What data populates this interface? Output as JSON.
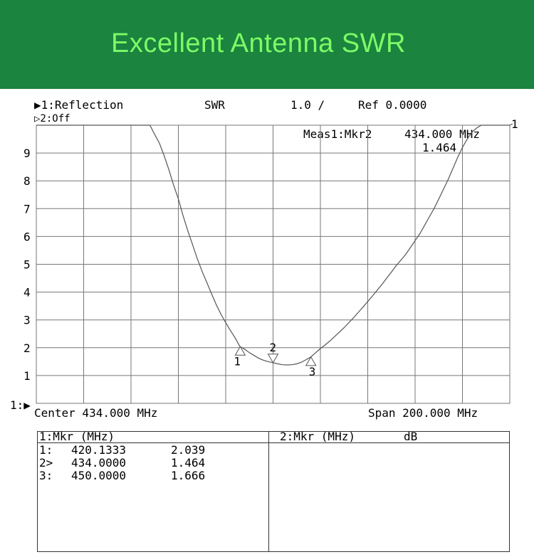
{
  "banner": {
    "title": "Excellent Antenna SWR"
  },
  "header": {
    "trace1": "▶1:Reflection",
    "format": "SWR",
    "scale": "1.0 /",
    "ref": "Ref 0.0000",
    "trace2": "▷2:Off",
    "meas_label": "Meas1:Mkr2",
    "meas_freq": "434.000 MHz",
    "meas_value": "1.464",
    "trace_end_label": "1",
    "ref_marker": "1:▶"
  },
  "footer": {
    "center": "Center 434.000 MHz",
    "span": "Span 200.000 MHz"
  },
  "marker_table": {
    "left_header": "1:Mkr (MHz)",
    "right_header": "2:Mkr (MHz)",
    "right_unit": "dB",
    "rows": [
      {
        "id": "1:",
        "freq": "420.1333",
        "value": "2.039"
      },
      {
        "id": "2>",
        "freq": "434.0000",
        "value": "1.464"
      },
      {
        "id": "3:",
        "freq": "450.0000",
        "value": "1.666"
      }
    ]
  },
  "chart_data": {
    "type": "line",
    "title": "",
    "xlabel": "",
    "ylabel": "",
    "xlim": [
      334,
      534
    ],
    "ylim": [
      0,
      10
    ],
    "grid": true,
    "y_ticks": [
      "1",
      "2",
      "3",
      "4",
      "5",
      "6",
      "7",
      "8",
      "9"
    ],
    "series": [
      {
        "x": [
          334,
          382,
          383.5,
          386,
          388,
          390,
          392,
          394,
          396,
          398,
          400,
          402,
          404,
          406,
          408,
          410,
          412,
          414,
          416,
          418,
          420,
          422,
          424,
          426,
          428,
          430,
          432,
          434,
          436,
          438,
          440,
          442,
          444,
          446,
          448,
          450,
          452,
          454,
          456,
          458,
          460,
          462,
          464,
          466,
          468,
          470,
          472,
          474,
          476,
          478,
          480,
          482,
          484,
          486,
          488,
          490,
          492,
          494,
          496,
          498,
          500,
          502,
          504,
          506,
          508,
          510,
          512,
          514,
          516,
          518,
          520,
          522,
          524,
          526,
          528,
          530,
          532,
          534
        ],
        "y": [
          10,
          10,
          9.75,
          9.35,
          8.9,
          8.4,
          7.85,
          7.35,
          6.75,
          6.2,
          5.7,
          5.2,
          4.75,
          4.35,
          3.95,
          3.55,
          3.2,
          2.9,
          2.62,
          2.35,
          2.04,
          1.95,
          1.82,
          1.72,
          1.62,
          1.55,
          1.5,
          1.46,
          1.42,
          1.39,
          1.38,
          1.39,
          1.42,
          1.48,
          1.57,
          1.67,
          1.82,
          1.97,
          2.1,
          2.24,
          2.4,
          2.56,
          2.72,
          2.9,
          3.08,
          3.27,
          3.46,
          3.66,
          3.86,
          4.07,
          4.28,
          4.5,
          4.72,
          4.95,
          5.15,
          5.35,
          5.6,
          5.85,
          6.1,
          6.4,
          6.7,
          7.0,
          7.35,
          7.7,
          8.05,
          8.45,
          8.85,
          9.2,
          9.5,
          9.75,
          9.9,
          10,
          10,
          10,
          10,
          10,
          10,
          10
        ]
      }
    ],
    "markers": [
      {
        "label": "1",
        "x": 420.1333,
        "y": 2.039
      },
      {
        "label": "2",
        "x": 434.0,
        "y": 1.464
      },
      {
        "label": "3",
        "x": 450.0,
        "y": 1.666
      }
    ]
  }
}
